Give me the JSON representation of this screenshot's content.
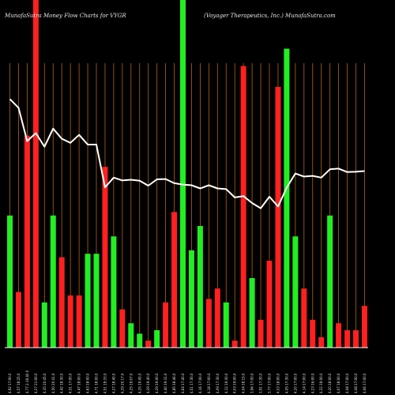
{
  "header": {
    "left": "MunafaSutra  Money Flow  Charts for VYGR",
    "right": "(Voyager Therapeutics, Inc.) MunafaSutra.com"
  },
  "colors": {
    "background": "#000000",
    "gridline": "#b8620f",
    "up": "#22ee22",
    "down": "#ff2020",
    "line": "#ffffff",
    "text": "#e6e6e6"
  },
  "chart_data": {
    "type": "bar",
    "title": "MunafaSutra  Money Flow  Charts for VYGR",
    "subtitle": "(Voyager Therapeutics, Inc.) MunafaSutra.com",
    "grid": true,
    "ylim": [
      0,
      100
    ],
    "categories": [
      "4.92 17:00.0",
      "4.57 18:25.0",
      "4.77 2.18.40.0",
      "4.27 21:00.0",
      "4.35 20:45.0",
      "4.50 20:41.0",
      "4.42 18:30.0",
      "4.51 17:00.0",
      "4.47 18:00.0",
      "4.63 18:00.0",
      "4.71 18:00.0",
      "4.51 19:33.0",
      "4.27 18:40.0",
      "4.29 20:17.0",
      "4.25 19:07.0",
      "4.25 19:45.0",
      "4.29 19:40.0",
      "4.29 19:00.0",
      "4.40 19:31.0",
      "4.85 18:46.0",
      "4.64 17:40.0",
      "4.51 17:30.0",
      "4.16 17:00.0",
      "4.18 17:00.0",
      "4.09 17:30.0",
      "4.12 19:30.0",
      "4.03 19:00.0",
      "4.04 18:15.0",
      "3.96 17:00.0",
      "3.91 17:30.0",
      "3.77 17:00.0",
      "4.03 18:00.0",
      "4.05 17:30.0",
      "4.20 17:00.0",
      "4.14 17:00.0",
      "4.23 16:00.0",
      "4.22 18:00.0",
      "4.20 18:00.0",
      "4.07 18:00.0",
      "4.08 17:00.0",
      "4.08 17:00.0",
      "4.06 17:00.0"
    ],
    "colors": [
      "up",
      "down",
      "down",
      "down",
      "up",
      "up",
      "down",
      "down",
      "down",
      "up",
      "up",
      "down",
      "up",
      "down",
      "up",
      "up",
      "down",
      "up",
      "down",
      "down",
      "up",
      "up",
      "up",
      "down",
      "down",
      "up",
      "down",
      "down",
      "up",
      "down",
      "down",
      "down",
      "up",
      "up",
      "down",
      "down",
      "down",
      "up",
      "down",
      "down",
      "down",
      "down"
    ],
    "values": [
      38,
      16,
      61,
      100,
      13,
      38,
      26,
      15,
      15,
      27,
      27,
      52,
      32,
      11,
      7,
      4,
      2,
      5,
      13,
      39,
      100,
      28,
      35,
      14,
      17,
      13,
      2,
      81,
      20,
      8,
      25,
      75,
      86,
      32,
      17,
      8,
      3,
      38,
      7,
      5,
      5,
      12
    ],
    "line": [
      71.5,
      69.0,
      59.4,
      61.7,
      57.8,
      63.0,
      60.1,
      58.9,
      61.2,
      58.4,
      58.4,
      46.1,
      48.9,
      48.1,
      48.3,
      48.0,
      46.6,
      48.4,
      48.5,
      47.3,
      46.9,
      46.7,
      45.8,
      46.7,
      45.8,
      45.6,
      43.2,
      43.6,
      41.6,
      40.1,
      43.4,
      40.6,
      46.0,
      50.1,
      49.2,
      49.4,
      48.9,
      51.3,
      51.5,
      50.5,
      50.6,
      50.8
    ]
  }
}
